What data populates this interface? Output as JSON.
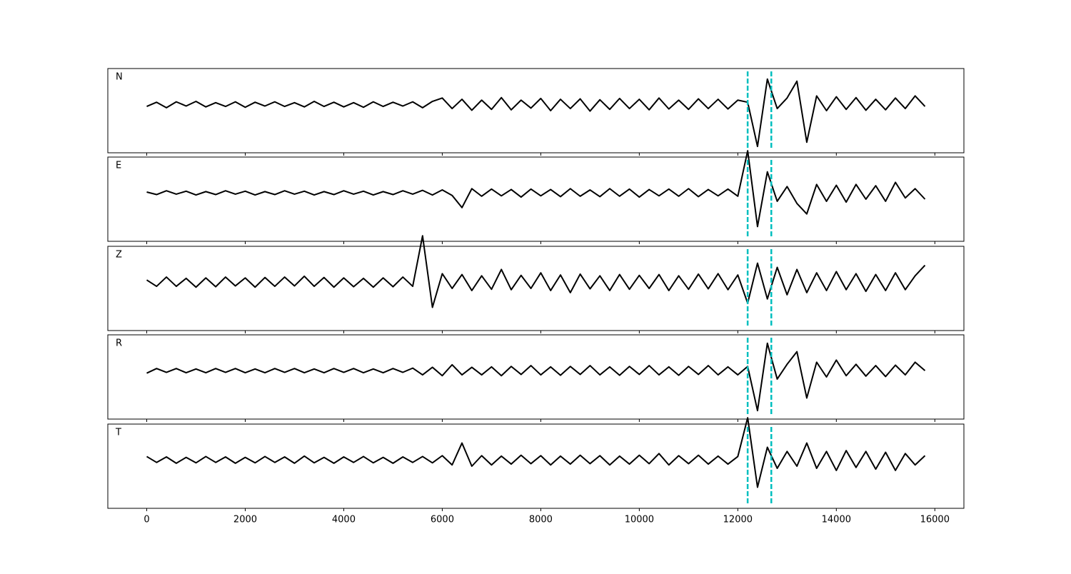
{
  "chart_data": {
    "type": "line",
    "x": [
      0,
      200,
      400,
      600,
      800,
      1000,
      1200,
      1400,
      1600,
      1800,
      2000,
      2200,
      2400,
      2600,
      2800,
      3000,
      3200,
      3400,
      3600,
      3800,
      4000,
      4200,
      4400,
      4600,
      4800,
      5000,
      5200,
      5400,
      5600,
      5800,
      6000,
      6200,
      6400,
      6600,
      6800,
      7000,
      7200,
      7400,
      7600,
      7800,
      8000,
      8200,
      8400,
      8600,
      8800,
      9000,
      9200,
      9400,
      9600,
      9800,
      10000,
      10200,
      10400,
      10600,
      10800,
      11000,
      11200,
      11400,
      11600,
      11800,
      12000,
      12200,
      12400,
      12600,
      12800,
      13000,
      13200,
      13400,
      13600,
      13800,
      14000,
      14200,
      14400,
      14600,
      14800,
      15000,
      15200,
      15400,
      15600,
      15800
    ],
    "series": [
      {
        "name": "N",
        "color": "#000000",
        "values": [
          -0.05,
          0.05,
          -0.08,
          0.06,
          -0.04,
          0.07,
          -0.06,
          0.04,
          -0.05,
          0.06,
          -0.07,
          0.05,
          -0.04,
          0.06,
          -0.05,
          0.04,
          -0.06,
          0.07,
          -0.05,
          0.05,
          -0.06,
          0.04,
          -0.07,
          0.06,
          -0.05,
          0.05,
          -0.04,
          0.06,
          -0.08,
          0.07,
          0.15,
          -0.1,
          0.12,
          -0.14,
          0.1,
          -0.12,
          0.16,
          -0.13,
          0.1,
          -0.09,
          0.14,
          -0.15,
          0.12,
          -0.1,
          0.13,
          -0.16,
          0.11,
          -0.12,
          0.14,
          -0.1,
          0.12,
          -0.13,
          0.15,
          -0.11,
          0.1,
          -0.12,
          0.13,
          -0.1,
          0.12,
          -0.11,
          0.1,
          0.05,
          -1.0,
          0.6,
          -0.1,
          0.15,
          0.55,
          -0.9,
          0.2,
          -0.15,
          0.18,
          -0.12,
          0.16,
          -0.14,
          0.12,
          -0.13,
          0.15,
          -0.1,
          0.2,
          -0.05
        ]
      },
      {
        "name": "E",
        "color": "#000000",
        "values": [
          0.02,
          -0.04,
          0.05,
          -0.03,
          0.04,
          -0.05,
          0.03,
          -0.04,
          0.05,
          -0.03,
          0.04,
          -0.05,
          0.03,
          -0.04,
          0.05,
          -0.03,
          0.04,
          -0.05,
          0.03,
          -0.04,
          0.05,
          -0.03,
          0.04,
          -0.05,
          0.03,
          -0.04,
          0.05,
          -0.03,
          0.06,
          -0.05,
          0.07,
          -0.06,
          -0.35,
          0.1,
          -0.08,
          0.09,
          -0.07,
          0.08,
          -0.1,
          0.09,
          -0.07,
          0.08,
          -0.09,
          0.1,
          -0.08,
          0.07,
          -0.09,
          0.1,
          -0.08,
          0.09,
          -0.1,
          0.08,
          -0.07,
          0.09,
          -0.08,
          0.1,
          -0.09,
          0.08,
          -0.07,
          0.09,
          -0.08,
          1.0,
          -0.8,
          0.5,
          -0.2,
          0.15,
          -0.25,
          -0.5,
          0.2,
          -0.2,
          0.18,
          -0.22,
          0.2,
          -0.15,
          0.17,
          -0.2,
          0.25,
          -0.12,
          0.1,
          -0.15
        ]
      },
      {
        "name": "Z",
        "color": "#000000",
        "values": [
          0.05,
          -0.1,
          0.12,
          -0.1,
          0.09,
          -0.12,
          0.1,
          -0.11,
          0.12,
          -0.09,
          0.1,
          -0.12,
          0.11,
          -0.1,
          0.12,
          -0.09,
          0.14,
          -0.1,
          0.11,
          -0.12,
          0.1,
          -0.11,
          0.09,
          -0.12,
          0.1,
          -0.11,
          0.12,
          -0.1,
          1.1,
          -0.6,
          0.2,
          -0.15,
          0.18,
          -0.2,
          0.15,
          -0.17,
          0.3,
          -0.18,
          0.16,
          -0.15,
          0.22,
          -0.2,
          0.17,
          -0.25,
          0.19,
          -0.16,
          0.15,
          -0.2,
          0.18,
          -0.17,
          0.16,
          -0.15,
          0.18,
          -0.2,
          0.15,
          -0.17,
          0.19,
          -0.16,
          0.2,
          -0.18,
          0.17,
          -0.5,
          0.45,
          -0.4,
          0.35,
          -0.3,
          0.3,
          -0.25,
          0.22,
          -0.2,
          0.25,
          -0.18,
          0.2,
          -0.22,
          0.18,
          -0.2,
          0.22,
          -0.18,
          0.15,
          0.4
        ]
      },
      {
        "name": "R",
        "color": "#000000",
        "values": [
          -0.06,
          0.05,
          -0.04,
          0.05,
          -0.05,
          0.04,
          -0.05,
          0.05,
          -0.04,
          0.05,
          -0.05,
          0.04,
          -0.05,
          0.05,
          -0.04,
          0.05,
          -0.05,
          0.04,
          -0.05,
          0.05,
          -0.04,
          0.05,
          -0.05,
          0.04,
          -0.05,
          0.05,
          -0.04,
          0.06,
          -0.1,
          0.08,
          -0.12,
          0.14,
          -0.1,
          0.08,
          -0.1,
          0.09,
          -0.12,
          0.1,
          -0.09,
          0.12,
          -0.1,
          0.09,
          -0.11,
          0.1,
          -0.09,
          0.12,
          -0.1,
          0.09,
          -0.11,
          0.1,
          -0.09,
          0.12,
          -0.1,
          0.09,
          -0.11,
          0.1,
          -0.09,
          0.12,
          -0.1,
          0.09,
          -0.1,
          0.1,
          -0.95,
          0.65,
          -0.2,
          0.15,
          0.45,
          -0.65,
          0.2,
          -0.15,
          0.25,
          -0.12,
          0.15,
          -0.13,
          0.12,
          -0.14,
          0.13,
          -0.1,
          0.2,
          0.0
        ]
      },
      {
        "name": "T",
        "color": "#000000",
        "values": [
          0.08,
          -0.06,
          0.07,
          -0.08,
          0.06,
          -0.07,
          0.08,
          -0.06,
          0.07,
          -0.08,
          0.06,
          -0.07,
          0.08,
          -0.06,
          0.07,
          -0.08,
          0.09,
          -0.07,
          0.06,
          -0.08,
          0.07,
          -0.06,
          0.08,
          -0.07,
          0.06,
          -0.08,
          0.07,
          -0.06,
          0.08,
          -0.07,
          0.1,
          -0.12,
          0.4,
          -0.15,
          0.1,
          -0.12,
          0.09,
          -0.1,
          0.11,
          -0.09,
          0.1,
          -0.12,
          0.09,
          -0.1,
          0.11,
          -0.09,
          0.1,
          -0.12,
          0.09,
          -0.1,
          0.11,
          -0.09,
          0.15,
          -0.12,
          0.1,
          -0.09,
          0.11,
          -0.1,
          0.09,
          -0.1,
          0.08,
          1.0,
          -0.65,
          0.3,
          -0.2,
          0.2,
          -0.15,
          0.4,
          -0.2,
          0.2,
          -0.25,
          0.22,
          -0.18,
          0.2,
          -0.22,
          0.18,
          -0.25,
          0.15,
          -0.12,
          0.1
        ]
      }
    ],
    "vlines": [
      12200,
      12680
    ],
    "vline_color": "#00bfbf",
    "xlim": [
      -790,
      16590
    ],
    "xticks": [
      0,
      2000,
      4000,
      6000,
      8000,
      10000,
      12000,
      14000,
      16000
    ],
    "ylim": [
      -1.15,
      0.85
    ]
  }
}
